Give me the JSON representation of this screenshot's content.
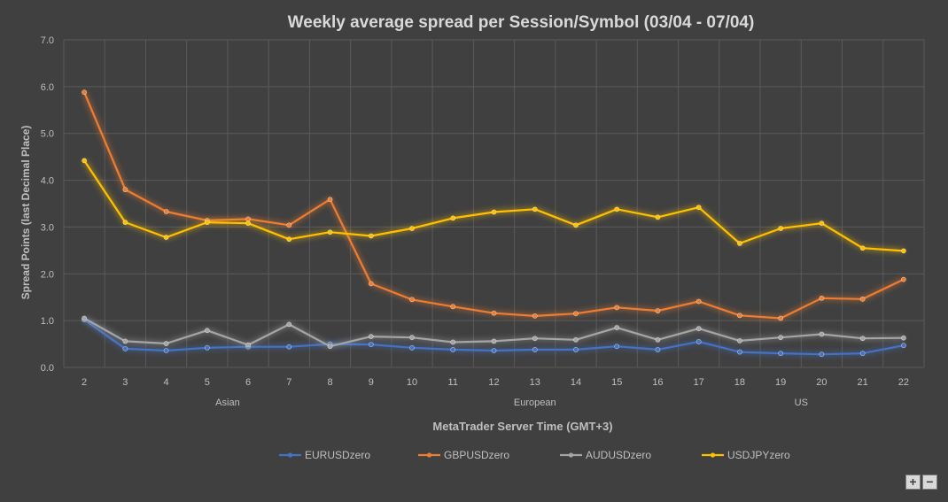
{
  "chart_data": {
    "type": "line",
    "title": "Weekly average spread per Session/Symbol (03/04 - 07/04)",
    "xlabel": "MetaTrader Server Time (GMT+3)",
    "ylabel": "Spread Points  (last Decimal Place)",
    "ylim": [
      0,
      7
    ],
    "yticks": [
      "0.0",
      "1.0",
      "2.0",
      "3.0",
      "4.0",
      "5.0",
      "6.0",
      "7.0"
    ],
    "categories": [
      "2",
      "3",
      "4",
      "5",
      "6",
      "7",
      "8",
      "9",
      "10",
      "11",
      "12",
      "13",
      "14",
      "15",
      "16",
      "17",
      "18",
      "19",
      "20",
      "21",
      "22"
    ],
    "sessions": [
      {
        "label": "Asian",
        "at": "5.5"
      },
      {
        "label": "European",
        "at": "13"
      },
      {
        "label": "US",
        "at": "19.5"
      }
    ],
    "grid": true,
    "legend_position": "bottom",
    "series": [
      {
        "name": "EURUSDzero",
        "color": "#4472c4",
        "values": [
          1.02,
          0.4,
          0.36,
          0.42,
          0.44,
          0.44,
          0.5,
          0.49,
          0.42,
          0.38,
          0.36,
          0.38,
          0.38,
          0.45,
          0.38,
          0.55,
          0.33,
          0.3,
          0.28,
          0.3,
          0.47
        ]
      },
      {
        "name": "GBPUSDzero",
        "color": "#ed7d31",
        "values": [
          5.88,
          3.8,
          3.33,
          3.14,
          3.17,
          3.04,
          3.59,
          1.79,
          1.45,
          1.3,
          1.16,
          1.1,
          1.15,
          1.28,
          1.21,
          1.41,
          1.11,
          1.05,
          1.48,
          1.46,
          1.88
        ]
      },
      {
        "name": "AUDUSDzero",
        "color": "#a5a5a5",
        "values": [
          1.05,
          0.56,
          0.51,
          0.79,
          0.48,
          0.92,
          0.45,
          0.66,
          0.64,
          0.54,
          0.56,
          0.62,
          0.59,
          0.85,
          0.59,
          0.83,
          0.57,
          0.64,
          0.71,
          0.62,
          0.63
        ]
      },
      {
        "name": "USDJPYzero",
        "color": "#ffc000",
        "values": [
          4.42,
          3.1,
          2.78,
          3.1,
          3.08,
          2.74,
          2.89,
          2.81,
          2.97,
          3.19,
          3.32,
          3.38,
          3.04,
          3.38,
          3.21,
          3.42,
          2.65,
          2.97,
          3.08,
          2.55,
          2.49
        ]
      }
    ]
  },
  "controls": {
    "zoom_in": "+",
    "zoom_out": "−"
  }
}
